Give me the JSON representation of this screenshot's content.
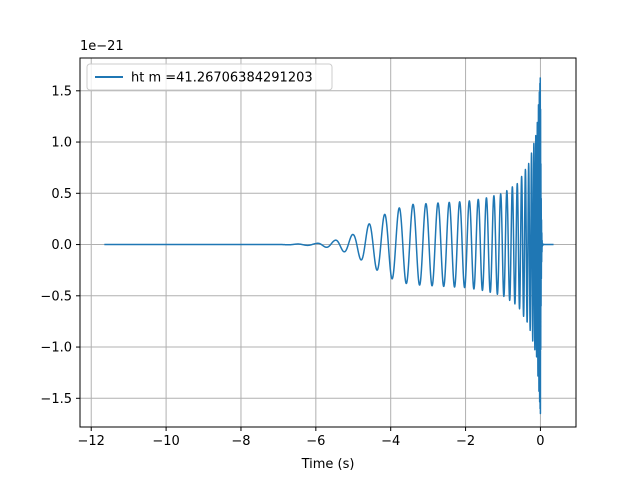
{
  "chart_data": {
    "type": "line",
    "title": "",
    "xlabel": "Time (s)",
    "ylabel": "",
    "offset_text": "1e−21",
    "xlim": [
      -12.3,
      0.95
    ],
    "ylim": [
      -1.78,
      1.82
    ],
    "x_ticks": [
      -12,
      -10,
      -8,
      -6,
      -4,
      -2,
      0
    ],
    "x_tick_labels": [
      "−12",
      "−10",
      "−8",
      "−6",
      "−4",
      "−2",
      "0"
    ],
    "y_ticks": [
      -1.5,
      -1.0,
      -0.5,
      0.0,
      0.5,
      1.0,
      1.5
    ],
    "y_tick_labels": [
      "−1.5",
      "−1.0",
      "−0.5",
      "0.0",
      "0.5",
      "1.0",
      "1.5"
    ],
    "grid": true,
    "legend_position": "top-left",
    "series": [
      {
        "name": "ht m =41.26706384291203",
        "color": "#1f77b4",
        "t_start": -11.65,
        "t_merger": 0.0,
        "t_end": 0.35,
        "envelope": [
          {
            "t": -11.65,
            "amp": 0.0
          },
          {
            "t": -7.0,
            "amp": 0.0
          },
          {
            "t": -6.0,
            "amp": 0.01
          },
          {
            "t": -5.5,
            "amp": 0.04
          },
          {
            "t": -5.0,
            "amp": 0.1
          },
          {
            "t": -4.5,
            "amp": 0.22
          },
          {
            "t": -4.0,
            "amp": 0.33
          },
          {
            "t": -3.5,
            "amp": 0.39
          },
          {
            "t": -3.0,
            "amp": 0.4
          },
          {
            "t": -2.5,
            "amp": 0.41
          },
          {
            "t": -2.0,
            "amp": 0.42
          },
          {
            "t": -1.5,
            "amp": 0.45
          },
          {
            "t": -1.0,
            "amp": 0.5
          },
          {
            "t": -0.6,
            "amp": 0.6
          },
          {
            "t": -0.3,
            "amp": 0.8
          },
          {
            "t": -0.1,
            "amp": 1.1
          },
          {
            "t": 0.0,
            "amp": 1.65
          },
          {
            "t": 0.05,
            "amp": 0.1
          },
          {
            "t": 0.1,
            "amp": 0.0
          },
          {
            "t": 0.35,
            "amp": 0.0
          }
        ]
      }
    ]
  }
}
